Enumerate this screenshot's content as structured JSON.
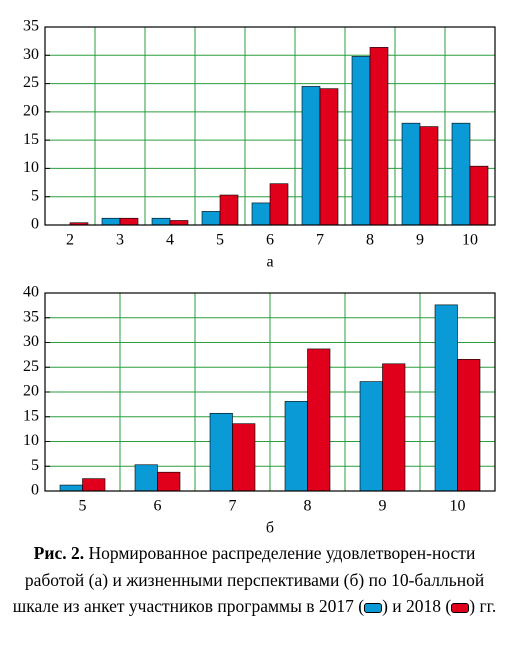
{
  "chart_data": [
    {
      "type": "bar",
      "xlabel": "а",
      "categories": [
        "2",
        "3",
        "4",
        "5",
        "6",
        "7",
        "8",
        "9",
        "10"
      ],
      "series": [
        {
          "name": "2017",
          "color": "#0a9ad6",
          "values": [
            0,
            1.2,
            1.2,
            2.4,
            3.9,
            24.5,
            29.8,
            18,
            18
          ]
        },
        {
          "name": "2018",
          "color": "#e0001b",
          "values": [
            0.4,
            1.2,
            0.8,
            5.3,
            7.3,
            24.1,
            31.4,
            17.4,
            10.4
          ]
        }
      ],
      "ylim": [
        0,
        35
      ],
      "yticks": [
        0,
        5,
        10,
        15,
        20,
        25,
        30,
        35
      ],
      "grid": true,
      "grid_color": "#2a9d3c"
    },
    {
      "type": "bar",
      "xlabel": "б",
      "categories": [
        "5",
        "6",
        "7",
        "8",
        "9",
        "10"
      ],
      "series": [
        {
          "color": "#0a9ad6",
          "values": [
            1.2,
            5.3,
            15.7,
            18.1,
            22.1,
            37.6
          ]
        },
        {
          "color": "#e0001b",
          "values": [
            2.5,
            3.8,
            13.6,
            28.7,
            25.7,
            26.6
          ]
        }
      ],
      "ylim": [
        0,
        40
      ],
      "yticks": [
        0,
        5,
        10,
        15,
        20,
        25,
        30,
        35,
        40
      ],
      "grid": true,
      "grid_color": "#2a9d3c"
    }
  ],
  "caption": {
    "label": "Рис. 2.",
    "text": "Нормированное распределение удовлетворен-ности работой (а) и жизненными перспективами (б) по 10-балльной шкале из анкет участников программы в",
    "open": "(",
    "close": ")",
    "and": "и",
    "end": "гг."
  }
}
